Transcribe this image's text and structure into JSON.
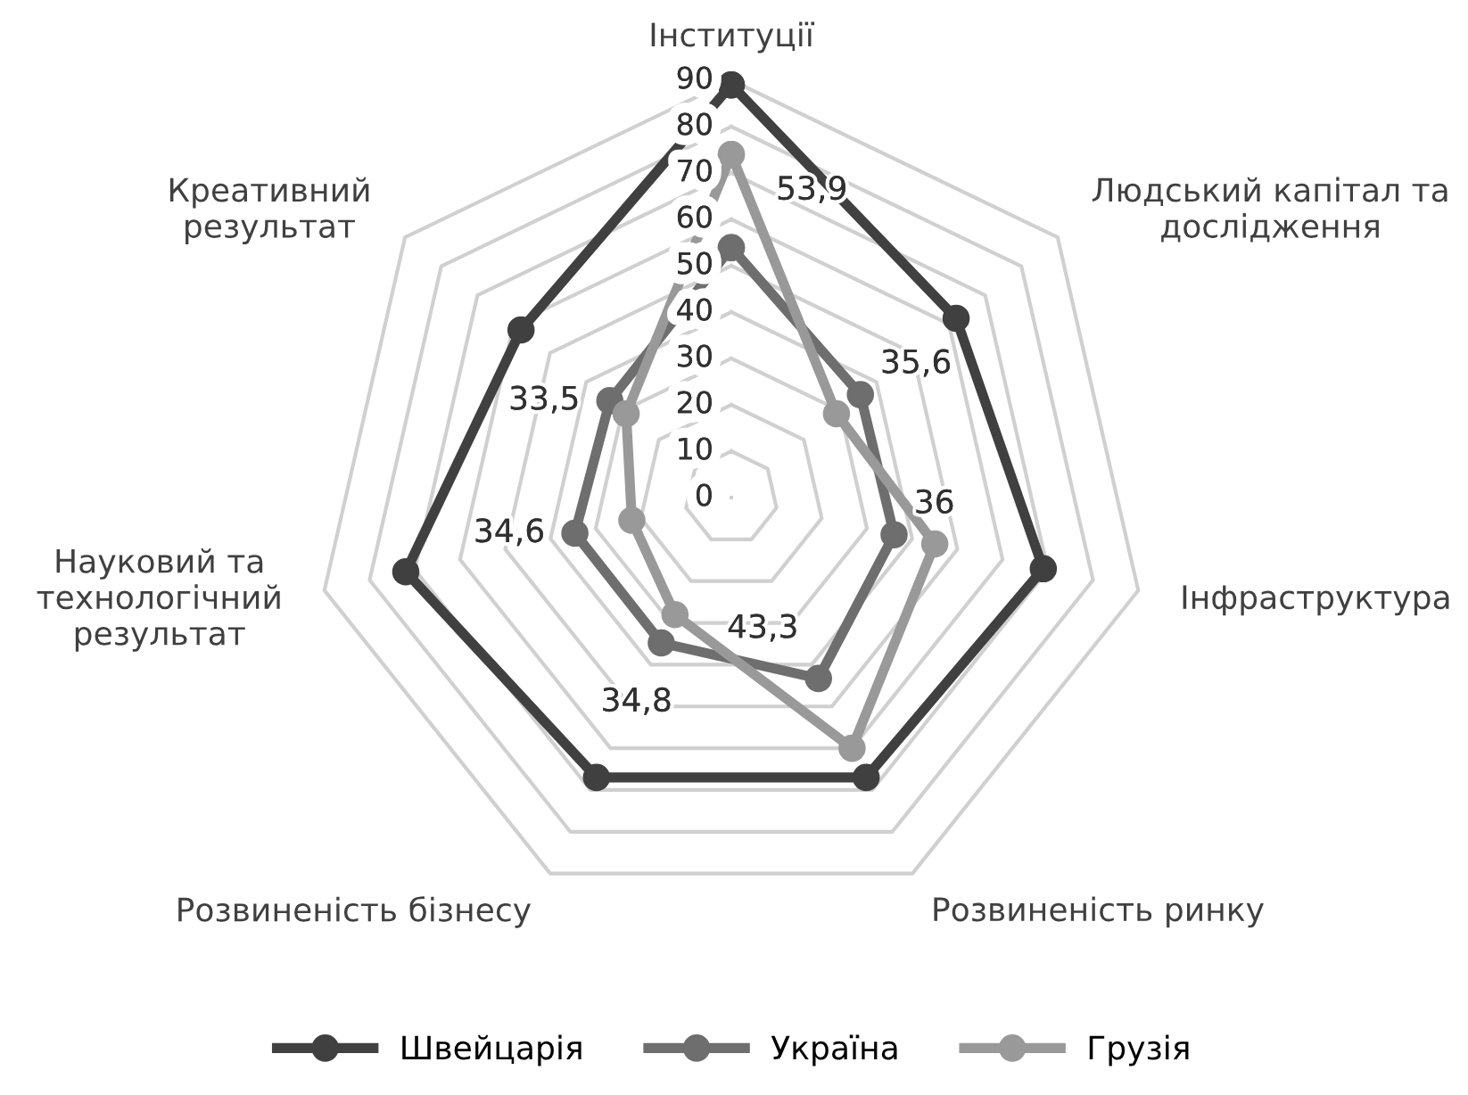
{
  "chart_data": {
    "type": "radar",
    "categories": [
      "Інституції",
      "Людський капітал та\nдослідження",
      "Інфраструктура",
      "Розвиненість ринку",
      "Розвиненість бізнесу",
      "Науковий та\nтехнологічний\nрезультат",
      "Креативний\nрезультат"
    ],
    "series": [
      {
        "name": "Швейцарія",
        "color": "#404040",
        "values": [
          89,
          62,
          69,
          67,
          67,
          72,
          58
        ]
      },
      {
        "name": "Україна",
        "color": "#6e6e6e",
        "values": [
          53.9,
          35.6,
          36,
          43.3,
          34.8,
          34.6,
          33.5
        ],
        "value_labels": [
          "53,9",
          "35,6",
          "36",
          "43,3",
          "34,8",
          "34,6",
          "33,5"
        ]
      },
      {
        "name": "Грузія",
        "color": "#999999",
        "values": [
          74,
          29,
          45,
          60,
          28,
          22,
          29
        ]
      }
    ],
    "ylim": [
      0,
      90
    ],
    "yticks": [
      0,
      10,
      20,
      30,
      40,
      50,
      60,
      70,
      80,
      90
    ],
    "grid": true,
    "marker": "circle",
    "line_style": "solid",
    "legend": "bottom"
  }
}
